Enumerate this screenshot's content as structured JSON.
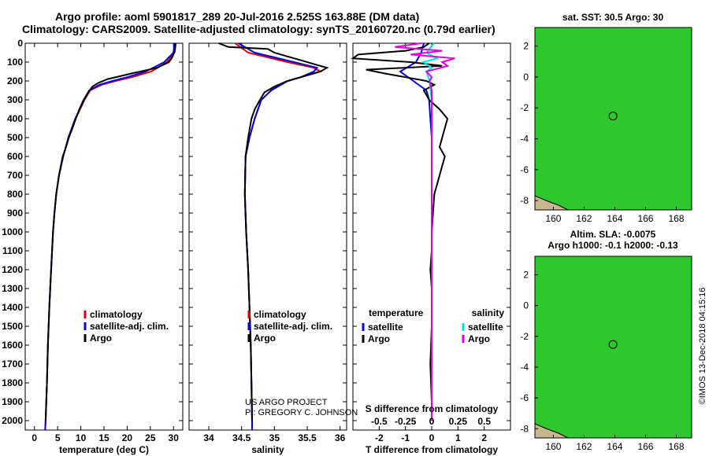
{
  "titles": {
    "line1": "Argo profile: aoml 5901817_289 20-Jul-2016 2.525S 163.88E (DM data)",
    "line2": "Climatology: CARS2009. Satellite-adjusted climatology: synTS_20160720.nc (0.79d earlier)"
  },
  "credits": {
    "project": "US ARGO PROJECT",
    "pi": "PI: GREGORY C. JOHNSON",
    "imos": "©IMOS 13-Dec-2018 04:15:16"
  },
  "colors": {
    "climatology": "#e00000",
    "satellite": "#0000e0",
    "argo": "#000000",
    "sal_satellite": "#00e0e0",
    "sal_argo": "#e000e0",
    "map_green": "#2ec82e",
    "map_tan": "#e8c890",
    "map_teal": "#20b0a0"
  },
  "depth_axis": {
    "ylim": [
      0,
      2050
    ],
    "ticks": [
      0,
      100,
      200,
      300,
      400,
      500,
      600,
      700,
      800,
      900,
      1000,
      1100,
      1200,
      1300,
      1400,
      1500,
      1600,
      1700,
      1800,
      1900,
      2000
    ]
  },
  "chart_data": [
    {
      "type": "line",
      "name": "temperature-profile",
      "xlabel": "temperature (deg C)",
      "xlim": [
        -2,
        32
      ],
      "xticks": [
        0,
        5,
        10,
        15,
        20,
        25,
        30
      ],
      "legend": {
        "position": "lower-middle",
        "entries": [
          "climatology",
          "satellite-adj. clim.",
          "Argo"
        ]
      },
      "series": [
        {
          "name": "climatology",
          "color_key": "climatology",
          "depth": [
            0,
            50,
            100,
            150,
            180,
            200,
            220,
            250,
            300,
            400,
            500,
            600,
            700,
            800,
            900,
            1000,
            1200,
            1400,
            1600,
            1800,
            2000,
            2050
          ],
          "values": [
            30.5,
            30.2,
            28.6,
            25.2,
            21.0,
            17.5,
            14.5,
            12.0,
            10.8,
            8.9,
            7.4,
            6.2,
            5.3,
            4.7,
            4.3,
            4.0,
            3.6,
            3.2,
            2.9,
            2.7,
            2.4,
            2.3
          ]
        },
        {
          "name": "satellite-adj. clim.",
          "color_key": "satellite",
          "depth": [
            0,
            50,
            100,
            150,
            180,
            200,
            220,
            250,
            300,
            400,
            500,
            600,
            700,
            800,
            900,
            1000,
            1200,
            1400,
            1600,
            1800,
            2000,
            2050
          ],
          "values": [
            30.2,
            30.0,
            28.0,
            24.0,
            20.0,
            16.8,
            14.0,
            11.8,
            10.7,
            8.8,
            7.3,
            6.2,
            5.3,
            4.7,
            4.3,
            4.0,
            3.6,
            3.2,
            2.9,
            2.7,
            2.4,
            2.3
          ]
        },
        {
          "name": "Argo",
          "color_key": "argo",
          "depth": [
            0,
            20,
            40,
            60,
            80,
            100,
            130,
            160,
            190,
            210,
            230,
            260,
            300,
            350,
            400,
            450,
            500,
            550,
            600,
            700,
            800,
            900,
            1000,
            1200,
            1400,
            1600,
            1800,
            2000
          ],
          "values": [
            30.4,
            30.4,
            30.3,
            30.0,
            29.6,
            29.0,
            26.5,
            21.0,
            15.8,
            13.8,
            12.5,
            11.6,
            10.6,
            9.7,
            8.9,
            8.2,
            7.4,
            6.8,
            6.1,
            5.3,
            4.7,
            4.3,
            4.0,
            3.6,
            3.2,
            2.9,
            2.7,
            2.4
          ]
        }
      ]
    },
    {
      "type": "line",
      "name": "salinity-profile",
      "xlabel": "salinity",
      "xlim": [
        33.7,
        36.1
      ],
      "xticks": [
        34,
        34.5,
        35,
        35.5,
        36
      ],
      "legend": {
        "position": "lower-middle",
        "entries": [
          "climatology",
          "satellite-adj. clim.",
          "Argo"
        ]
      },
      "series": [
        {
          "name": "climatology",
          "color_key": "climatology",
          "depth": [
            0,
            50,
            100,
            130,
            150,
            180,
            200,
            250,
            300,
            400,
            500,
            600,
            800,
            1000,
            1200,
            1400,
            1600,
            1800,
            2000,
            2050
          ],
          "values": [
            34.4,
            34.6,
            35.2,
            35.6,
            35.7,
            35.4,
            35.2,
            34.95,
            34.8,
            34.7,
            34.62,
            34.56,
            34.55,
            34.57,
            34.6,
            34.62,
            34.64,
            34.65,
            34.66,
            34.66
          ]
        },
        {
          "name": "satellite-adj. clim.",
          "color_key": "satellite",
          "depth": [
            0,
            50,
            100,
            130,
            150,
            180,
            200,
            250,
            300,
            400,
            500,
            600,
            800,
            1000,
            1200,
            1400,
            1600,
            1800,
            2000,
            2050
          ],
          "values": [
            34.45,
            34.7,
            35.3,
            35.65,
            35.6,
            35.4,
            35.2,
            34.95,
            34.8,
            34.7,
            34.62,
            34.56,
            34.55,
            34.57,
            34.6,
            34.62,
            34.64,
            34.65,
            34.66,
            34.66
          ]
        },
        {
          "name": "Argo",
          "color_key": "argo",
          "depth": [
            0,
            20,
            30,
            50,
            70,
            90,
            110,
            130,
            150,
            170,
            200,
            230,
            260,
            300,
            350,
            400,
            500,
            600,
            800,
            1000,
            1200,
            1400,
            1600,
            1800,
            2000
          ],
          "values": [
            34.15,
            34.3,
            34.9,
            35.0,
            35.2,
            35.4,
            35.6,
            35.8,
            35.7,
            35.5,
            35.2,
            35.0,
            34.85,
            34.78,
            34.7,
            34.65,
            34.6,
            34.56,
            34.55,
            34.57,
            34.6,
            34.62,
            34.64,
            34.65,
            34.66
          ]
        }
      ]
    },
    {
      "type": "line",
      "name": "difference-profile",
      "xlabel": "T difference from climatology",
      "xlabel2": "S difference from climatology",
      "xlim": [
        -3,
        3
      ],
      "xticks": [
        -2,
        -1,
        0,
        1,
        2
      ],
      "xlim_top": [
        -0.75,
        0.75
      ],
      "xticks_top": [
        -0.5,
        -0.25,
        0,
        0.25,
        0.5
      ],
      "legend": {
        "position": "lower",
        "headers": [
          "temperature",
          "salinity"
        ],
        "entries": [
          "satellite",
          "Argo",
          "satellite",
          "Argo"
        ]
      },
      "series": [
        {
          "name": "temperature satellite",
          "color_key": "satellite",
          "axis": "T",
          "depth": [
            0,
            50,
            100,
            150,
            200,
            250,
            300,
            400,
            500,
            600,
            800,
            1000,
            1500,
            2000
          ],
          "values": [
            -0.3,
            -0.4,
            -0.6,
            -1.2,
            -0.7,
            -0.2,
            -0.1,
            -0.05,
            0,
            0,
            0,
            0,
            0,
            0
          ]
        },
        {
          "name": "temperature Argo",
          "color_key": "argo",
          "axis": "T",
          "depth": [
            0,
            20,
            40,
            60,
            80,
            100,
            120,
            140,
            160,
            180,
            200,
            220,
            250,
            300,
            350,
            400,
            450,
            500,
            550,
            600,
            650,
            700,
            750,
            800,
            900,
            1000,
            1100,
            1200,
            1300,
            1500,
            1700,
            1900,
            2000
          ],
          "values": [
            -0.1,
            -0.3,
            -1.0,
            -2.8,
            -3.0,
            -0.8,
            0.4,
            -2.5,
            -1.8,
            -1.0,
            -0.2,
            0.1,
            -0.3,
            -0.1,
            0.3,
            0.6,
            0.5,
            0.4,
            0.3,
            0.5,
            0.4,
            0.3,
            0.2,
            0.1,
            0.05,
            0,
            0,
            -0.05,
            0,
            0,
            -0.05,
            0,
            0
          ]
        },
        {
          "name": "salinity satellite",
          "color_key": "sal_satellite",
          "axis": "S",
          "depth": [
            0,
            50,
            80,
            100,
            130,
            150,
            200,
            300,
            400,
            600,
            800,
            1000,
            1500,
            2000
          ],
          "values": [
            0.02,
            -0.05,
            0.05,
            -0.08,
            0.0,
            -0.05,
            -0.02,
            0,
            0,
            0,
            0,
            0,
            0,
            0
          ]
        },
        {
          "name": "salinity Argo",
          "color_key": "sal_argo",
          "axis": "S",
          "depth": [
            0,
            20,
            40,
            60,
            80,
            100,
            120,
            150,
            180,
            200,
            250,
            300,
            400,
            600,
            800,
            1000,
            1500,
            2000
          ],
          "values": [
            -0.1,
            -0.35,
            0.1,
            -0.2,
            0.22,
            0.1,
            0.15,
            -0.05,
            0.0,
            -0.02,
            0,
            0,
            0,
            0,
            0,
            0,
            0,
            0
          ]
        }
      ]
    },
    {
      "type": "heatmap",
      "name": "sst-map",
      "title": "sat. SST: 30.5 Argo: 30",
      "xticks": [
        160,
        162,
        164,
        166,
        168
      ],
      "yticks": [
        2,
        0,
        -2,
        -4,
        -6,
        -8
      ],
      "xlim": [
        158.8,
        169.0
      ],
      "ylim": [
        -8.6,
        3.2
      ],
      "marker": {
        "lon": 163.88,
        "lat": -2.525
      }
    },
    {
      "type": "heatmap",
      "name": "sla-map",
      "title_line1": "Altim. SLA: -0.0075",
      "title_line2": "Argo h1000: -0.1 h2000: -0.13",
      "xticks": [
        160,
        162,
        164,
        166,
        168
      ],
      "yticks": [
        2,
        0,
        -2,
        -4,
        -6,
        -8
      ],
      "xlim": [
        158.8,
        169.0
      ],
      "ylim": [
        -8.6,
        3.2
      ],
      "marker": {
        "lon": 163.88,
        "lat": -2.525
      }
    }
  ]
}
